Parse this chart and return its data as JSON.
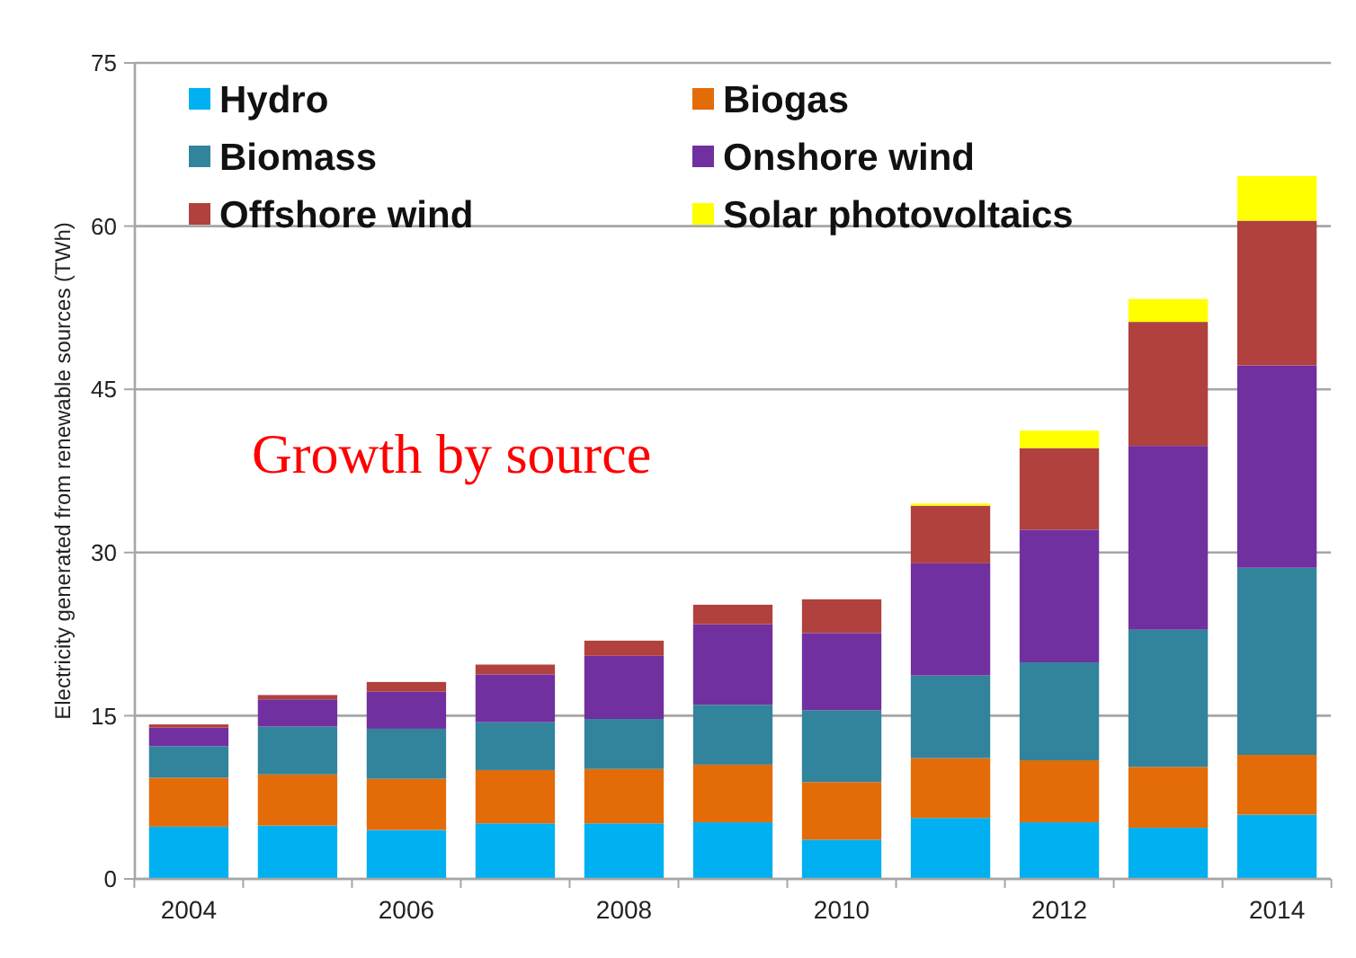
{
  "chart_data": {
    "type": "bar",
    "stacked": true,
    "ylabel": "Electricity generated from renewable sources (TWh)",
    "annotations": [
      "Growth by source"
    ],
    "categories": [
      "2004",
      null,
      "2006",
      null,
      "2008",
      null,
      "2010",
      null,
      "2012",
      null,
      "2014"
    ],
    "series": [
      {
        "name": "Hydro",
        "color": "#00b0f0",
        "values": [
          4.8,
          4.9,
          4.5,
          5.1,
          5.1,
          5.2,
          3.6,
          5.6,
          5.2,
          4.7,
          5.9
        ]
      },
      {
        "name": "Biogas",
        "color": "#e36c09",
        "values": [
          4.5,
          4.7,
          4.7,
          4.9,
          5.0,
          5.3,
          5.3,
          5.5,
          5.7,
          5.6,
          5.5
        ]
      },
      {
        "name": "Biomass",
        "color": "#31849b",
        "values": [
          2.9,
          4.4,
          4.6,
          4.4,
          4.6,
          5.5,
          6.6,
          7.6,
          9.0,
          12.6,
          17.2
        ]
      },
      {
        "name": "Onshore wind",
        "color": "#7030a0",
        "values": [
          1.7,
          2.5,
          3.4,
          4.4,
          5.8,
          7.4,
          7.1,
          10.3,
          12.2,
          16.9,
          18.6
        ]
      },
      {
        "name": "Offshore wind",
        "color": "#b0413e",
        "values": [
          0.3,
          0.4,
          0.9,
          0.9,
          1.4,
          1.8,
          3.1,
          5.3,
          7.5,
          11.4,
          13.3
        ]
      },
      {
        "name": "Solar photovoltaics",
        "color": "#ffff00",
        "values": [
          0,
          0,
          0,
          0,
          0,
          0,
          0,
          0.2,
          1.6,
          2.1,
          4.1
        ]
      }
    ],
    "ylim": [
      0,
      75
    ],
    "yticks": [
      0,
      15,
      30,
      45,
      60,
      75
    ],
    "grid": "y",
    "legend": "top left"
  }
}
